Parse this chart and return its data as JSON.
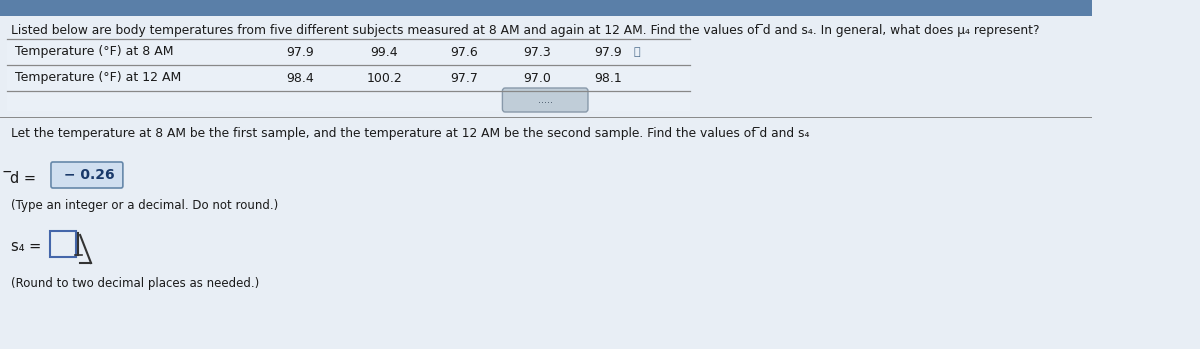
{
  "title": "Listed below are body temperatures from five different subjects measured at 8 AM and again at 12 AM. Find the values of ̅d and s₄. In general, what does μ₄ represent?",
  "row1_label": "Temperature (°F) at 8 AM",
  "row2_label": "Temperature (°F) at 12 AM",
  "row1_values": [
    "97.9",
    "99.4",
    "97.6",
    "97.3",
    "97.9"
  ],
  "row2_values": [
    "98.4",
    "100.2",
    "97.7",
    "97.0",
    "98.1"
  ],
  "instruction1": "Let the temperature at 8 AM be the first sample, and the temperature at 12 AM be the second sample. Find the values of ̅d and s₄",
  "d_label": "̅d = ",
  "d_value": " − 0.26",
  "d_note": "(Type an integer or a decimal. Do not round.)",
  "sd_label": "s₄ =",
  "sd_note": "(Round to two decimal places as needed.)",
  "bg_color": "#e8eef5",
  "text_color": "#1a1a1a",
  "answer_bg": "#d0dff0",
  "answer_color": "#1a3a6a",
  "empty_box_color": "#c8d8e8",
  "scroll_btn_color": "#c0cdd8",
  "line_color": "#888888",
  "title_bar_color": "#5a7fa8"
}
